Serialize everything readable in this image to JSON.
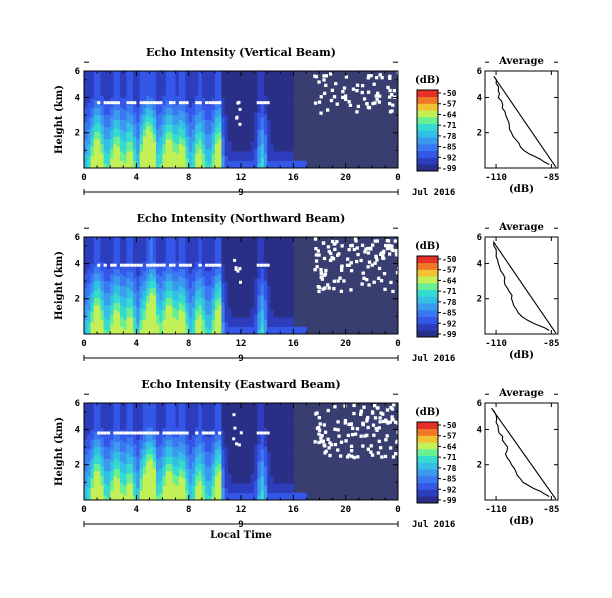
{
  "colors": {
    "background": "#393e70",
    "colormap": [
      "#2a2f86",
      "#2c3dbd",
      "#3557e8",
      "#3a78f2",
      "#3c9aee",
      "#33bfe6",
      "#36dbd0",
      "#6bef93",
      "#c3f057",
      "#f1c232",
      "#f07828",
      "#e8302a"
    ]
  },
  "chart_data": [
    {
      "type": "heatmap",
      "beam": "vertical",
      "title": "Echo Intensity (Vertical Beam)",
      "ylabel": "Height (km)",
      "x_ticks": [
        "0",
        "4",
        "8",
        "12",
        "16",
        "20",
        "0"
      ],
      "date_tick": "9",
      "date_label": "Jul 2016",
      "xlim": [
        0,
        24
      ],
      "ylim": [
        0,
        5.5
      ],
      "y_ticks": [
        "2",
        "4",
        "6"
      ],
      "colorbar_unit": "(dB)",
      "colorbar_ticks": [
        "-50",
        "-57",
        "-64",
        "-71",
        "-78",
        "-85",
        "-92",
        "-99"
      ],
      "clim": [
        -99,
        -50
      ],
      "layer_height_km": 3.7,
      "plumes_hr": [
        1,
        2.5,
        3.5,
        4.9,
        6.5,
        7.5,
        8.8,
        10.3,
        13.6
      ],
      "average": {
        "title": "Average",
        "xlabel": "(dB)",
        "x_ticks": [
          "-110",
          "-85"
        ],
        "y_ticks": [
          "2",
          "4",
          "6"
        ],
        "xlim": [
          -115,
          -82
        ],
        "ylim": [
          0,
          5.5
        ],
        "height_km": [
          0.2,
          0.5,
          0.8,
          1.2,
          1.6,
          2.0,
          2.4,
          2.8,
          3.2,
          3.6,
          4.0,
          4.4,
          4.8,
          5.2
        ],
        "value_db": [
          -86,
          -90,
          -95,
          -99,
          -101,
          -103,
          -104,
          -105,
          -106,
          -107,
          -109,
          -109,
          -110,
          -111
        ]
      }
    },
    {
      "type": "heatmap",
      "beam": "northward",
      "title": "Echo Intensity (Northward Beam)",
      "ylabel": "Height (km)",
      "x_ticks": [
        "0",
        "4",
        "8",
        "12",
        "16",
        "20",
        "0"
      ],
      "date_tick": "9",
      "date_label": "Jul 2016",
      "xlim": [
        0,
        24
      ],
      "ylim": [
        0,
        5.5
      ],
      "y_ticks": [
        "2",
        "4",
        "6"
      ],
      "colorbar_unit": "(dB)",
      "colorbar_ticks": [
        "-50",
        "-57",
        "-64",
        "-71",
        "-78",
        "-85",
        "-92",
        "-99"
      ],
      "clim": [
        -99,
        -50
      ],
      "layer_height_km": 3.9,
      "plumes_hr": [
        1,
        2.5,
        3.5,
        5.2,
        6.5,
        7.5,
        8.8,
        10.3,
        13.6
      ],
      "average": {
        "title": "Average",
        "xlabel": "(dB)",
        "x_ticks": [
          "-110",
          "-85"
        ],
        "y_ticks": [
          "2",
          "4",
          "6"
        ],
        "xlim": [
          -115,
          -82
        ],
        "ylim": [
          0,
          5.5
        ],
        "height_km": [
          0.2,
          0.5,
          0.8,
          1.2,
          1.6,
          2.0,
          2.4,
          2.8,
          3.2,
          3.6,
          4.0,
          4.4,
          4.8,
          5.2
        ],
        "value_db": [
          -86,
          -91,
          -96,
          -100,
          -102,
          -103,
          -104,
          -106,
          -106,
          -108,
          -109,
          -110,
          -110,
          -111
        ]
      }
    },
    {
      "type": "heatmap",
      "beam": "eastward",
      "title": "Echo Intensity (Eastward Beam)",
      "ylabel": "Height (km)",
      "xlabel": "Local Time",
      "x_ticks": [
        "0",
        "4",
        "8",
        "12",
        "16",
        "20",
        "0"
      ],
      "date_tick": "9",
      "date_label": "Jul 2016",
      "xlim": [
        0,
        24
      ],
      "ylim": [
        0,
        5.5
      ],
      "y_ticks": [
        "2",
        "4",
        "6"
      ],
      "colorbar_unit": "(dB)",
      "colorbar_ticks": [
        "-50",
        "-57",
        "-64",
        "-71",
        "-78",
        "-85",
        "-92",
        "-99"
      ],
      "clim": [
        -99,
        -50
      ],
      "layer_height_km": 3.8,
      "plumes_hr": [
        1,
        2.5,
        3.5,
        5.0,
        6.5,
        7.5,
        8.8,
        10.3,
        13.6
      ],
      "average": {
        "title": "Average",
        "xlabel": "(dB)",
        "x_ticks": [
          "-110",
          "-85"
        ],
        "y_ticks": [
          "2",
          "4",
          "6"
        ],
        "xlim": [
          -115,
          -82
        ],
        "ylim": [
          0,
          5.5
        ],
        "height_km": [
          0.2,
          0.5,
          0.8,
          1.2,
          1.6,
          2.0,
          2.4,
          2.8,
          3.2,
          3.6,
          4.0,
          4.4,
          4.8,
          5.2
        ],
        "value_db": [
          -86,
          -90,
          -95,
          -99,
          -101,
          -103,
          -105,
          -105,
          -106,
          -107,
          -109,
          -110,
          -110,
          -112
        ]
      }
    }
  ]
}
